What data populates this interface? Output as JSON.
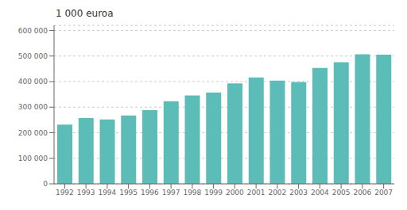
{
  "chart_data": {
    "type": "bar",
    "title": "1 000 euroa",
    "categories": [
      "1992",
      "1993",
      "1994",
      "1995",
      "1996",
      "1997",
      "1998",
      "1999",
      "2000",
      "2001",
      "2002",
      "2003",
      "2004",
      "2005",
      "2006",
      "2007"
    ],
    "values": [
      232000,
      257000,
      252000,
      267000,
      288000,
      323000,
      346000,
      357000,
      393000,
      416000,
      404000,
      398000,
      453000,
      476000,
      507000,
      505000
    ],
    "color": "#5bbcb8",
    "ylim": [
      0,
      620000
    ],
    "yticks": [
      0,
      {
        "value": 100000,
        "label": "100 000"
      },
      {
        "value": 200000,
        "label": "200 000"
      },
      {
        "value": 300000,
        "label": "300 000"
      },
      {
        "value": 400000,
        "label": "400 000"
      },
      {
        "value": 500000,
        "label": "500 000"
      },
      {
        "value": 600000,
        "label": "600 000"
      }
    ],
    "grid": true
  }
}
